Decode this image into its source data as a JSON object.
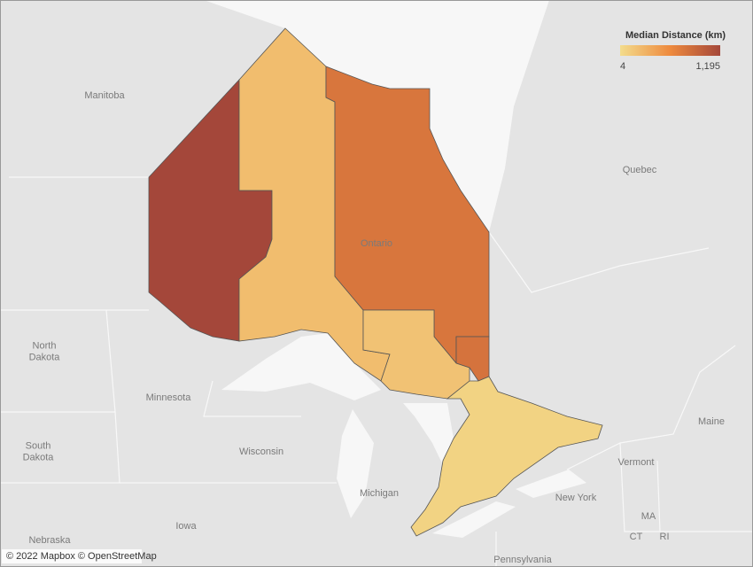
{
  "map": {
    "legend": {
      "title": "Median Distance (km)",
      "min": {
        "value": 4,
        "label": "4"
      },
      "max": {
        "value": 1195,
        "label": "1,195"
      },
      "colors": [
        "#f3dc8c",
        "#ee8a3e",
        "#a4473a"
      ]
    },
    "region_values": [
      1195,
      230,
      780,
      800,
      190,
      70
    ],
    "labels": [
      "Manitoba",
      "Quebec",
      "Ontario",
      "North Dakota",
      "Minnesota",
      "South Dakota",
      "Wisconsin",
      "Michigan",
      "Iowa",
      "Nebraska",
      "Maine",
      "Vermont",
      "New York",
      "MA",
      "CT",
      "RI",
      "Pennsylvania"
    ],
    "attribution": "© 2022 Mapbox © OpenStreetMap"
  }
}
